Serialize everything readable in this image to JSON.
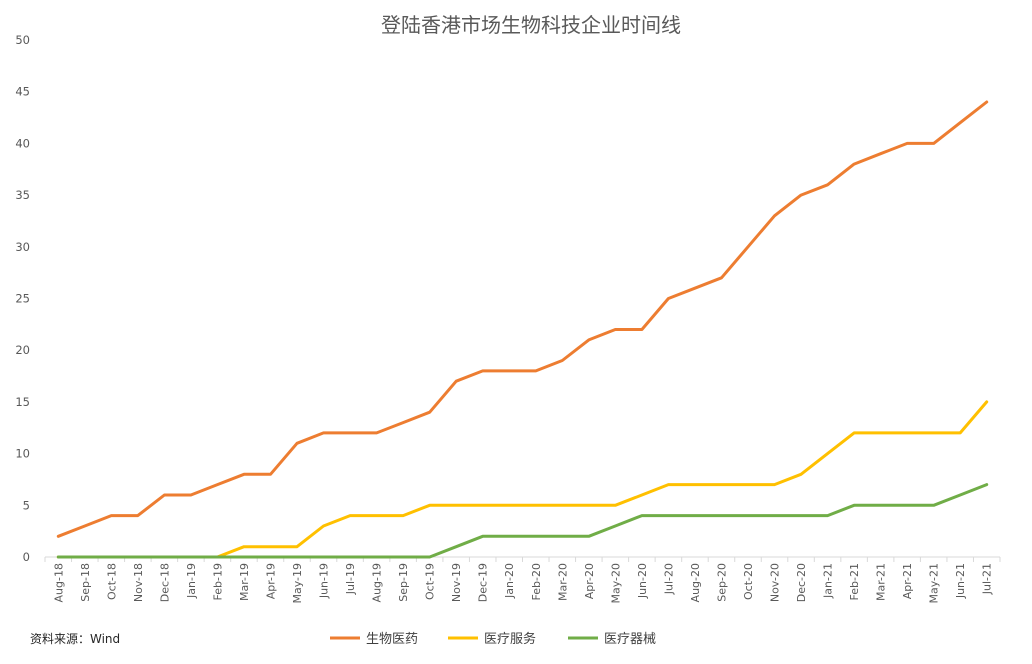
{
  "chart_data": {
    "type": "line",
    "title": "登陆香港市场生物科技企业时间线",
    "xlabel": "",
    "ylabel": "",
    "ylim": [
      0,
      50
    ],
    "yticks": [
      0,
      5,
      10,
      15,
      20,
      25,
      30,
      35,
      40,
      45,
      50
    ],
    "grid": false,
    "legend_position": "bottom",
    "categories": [
      "Aug-18",
      "Sep-18",
      "Oct-18",
      "Nov-18",
      "Dec-18",
      "Jan-19",
      "Feb-19",
      "Mar-19",
      "Apr-19",
      "May-19",
      "Jun-19",
      "Jul-19",
      "Aug-19",
      "Sep-19",
      "Oct-19",
      "Nov-19",
      "Dec-19",
      "Jan-20",
      "Feb-20",
      "Mar-20",
      "Apr-20",
      "May-20",
      "Jun-20",
      "Jul-20",
      "Aug-20",
      "Sep-20",
      "Oct-20",
      "Nov-20",
      "Dec-20",
      "Jan-21",
      "Feb-21",
      "Mar-21",
      "Apr-21",
      "May-21",
      "Jun-21",
      "Jul-21"
    ],
    "series": [
      {
        "name": "生物医药",
        "color": "#ED7D31",
        "values": [
          2,
          3,
          4,
          4,
          6,
          6,
          7,
          8,
          8,
          11,
          12,
          12,
          12,
          13,
          14,
          17,
          18,
          18,
          18,
          19,
          21,
          22,
          22,
          25,
          26,
          27,
          30,
          33,
          35,
          36,
          38,
          39,
          40,
          40,
          42,
          44
        ]
      },
      {
        "name": "医疗服务",
        "color": "#FFC000",
        "values": [
          0,
          0,
          0,
          0,
          0,
          0,
          0,
          1,
          1,
          1,
          3,
          4,
          4,
          4,
          5,
          5,
          5,
          5,
          5,
          5,
          5,
          5,
          6,
          7,
          7,
          7,
          7,
          7,
          8,
          10,
          12,
          12,
          12,
          12,
          12,
          15
        ]
      },
      {
        "name": "医疗器械",
        "color": "#70AD47",
        "values": [
          0,
          0,
          0,
          0,
          0,
          0,
          0,
          0,
          0,
          0,
          0,
          0,
          0,
          0,
          0,
          1,
          2,
          2,
          2,
          2,
          2,
          3,
          4,
          4,
          4,
          4,
          4,
          4,
          4,
          4,
          5,
          5,
          5,
          5,
          6,
          7
        ]
      }
    ],
    "source": "资料来源：Wind",
    "axis_color": "#D9D9D9"
  }
}
